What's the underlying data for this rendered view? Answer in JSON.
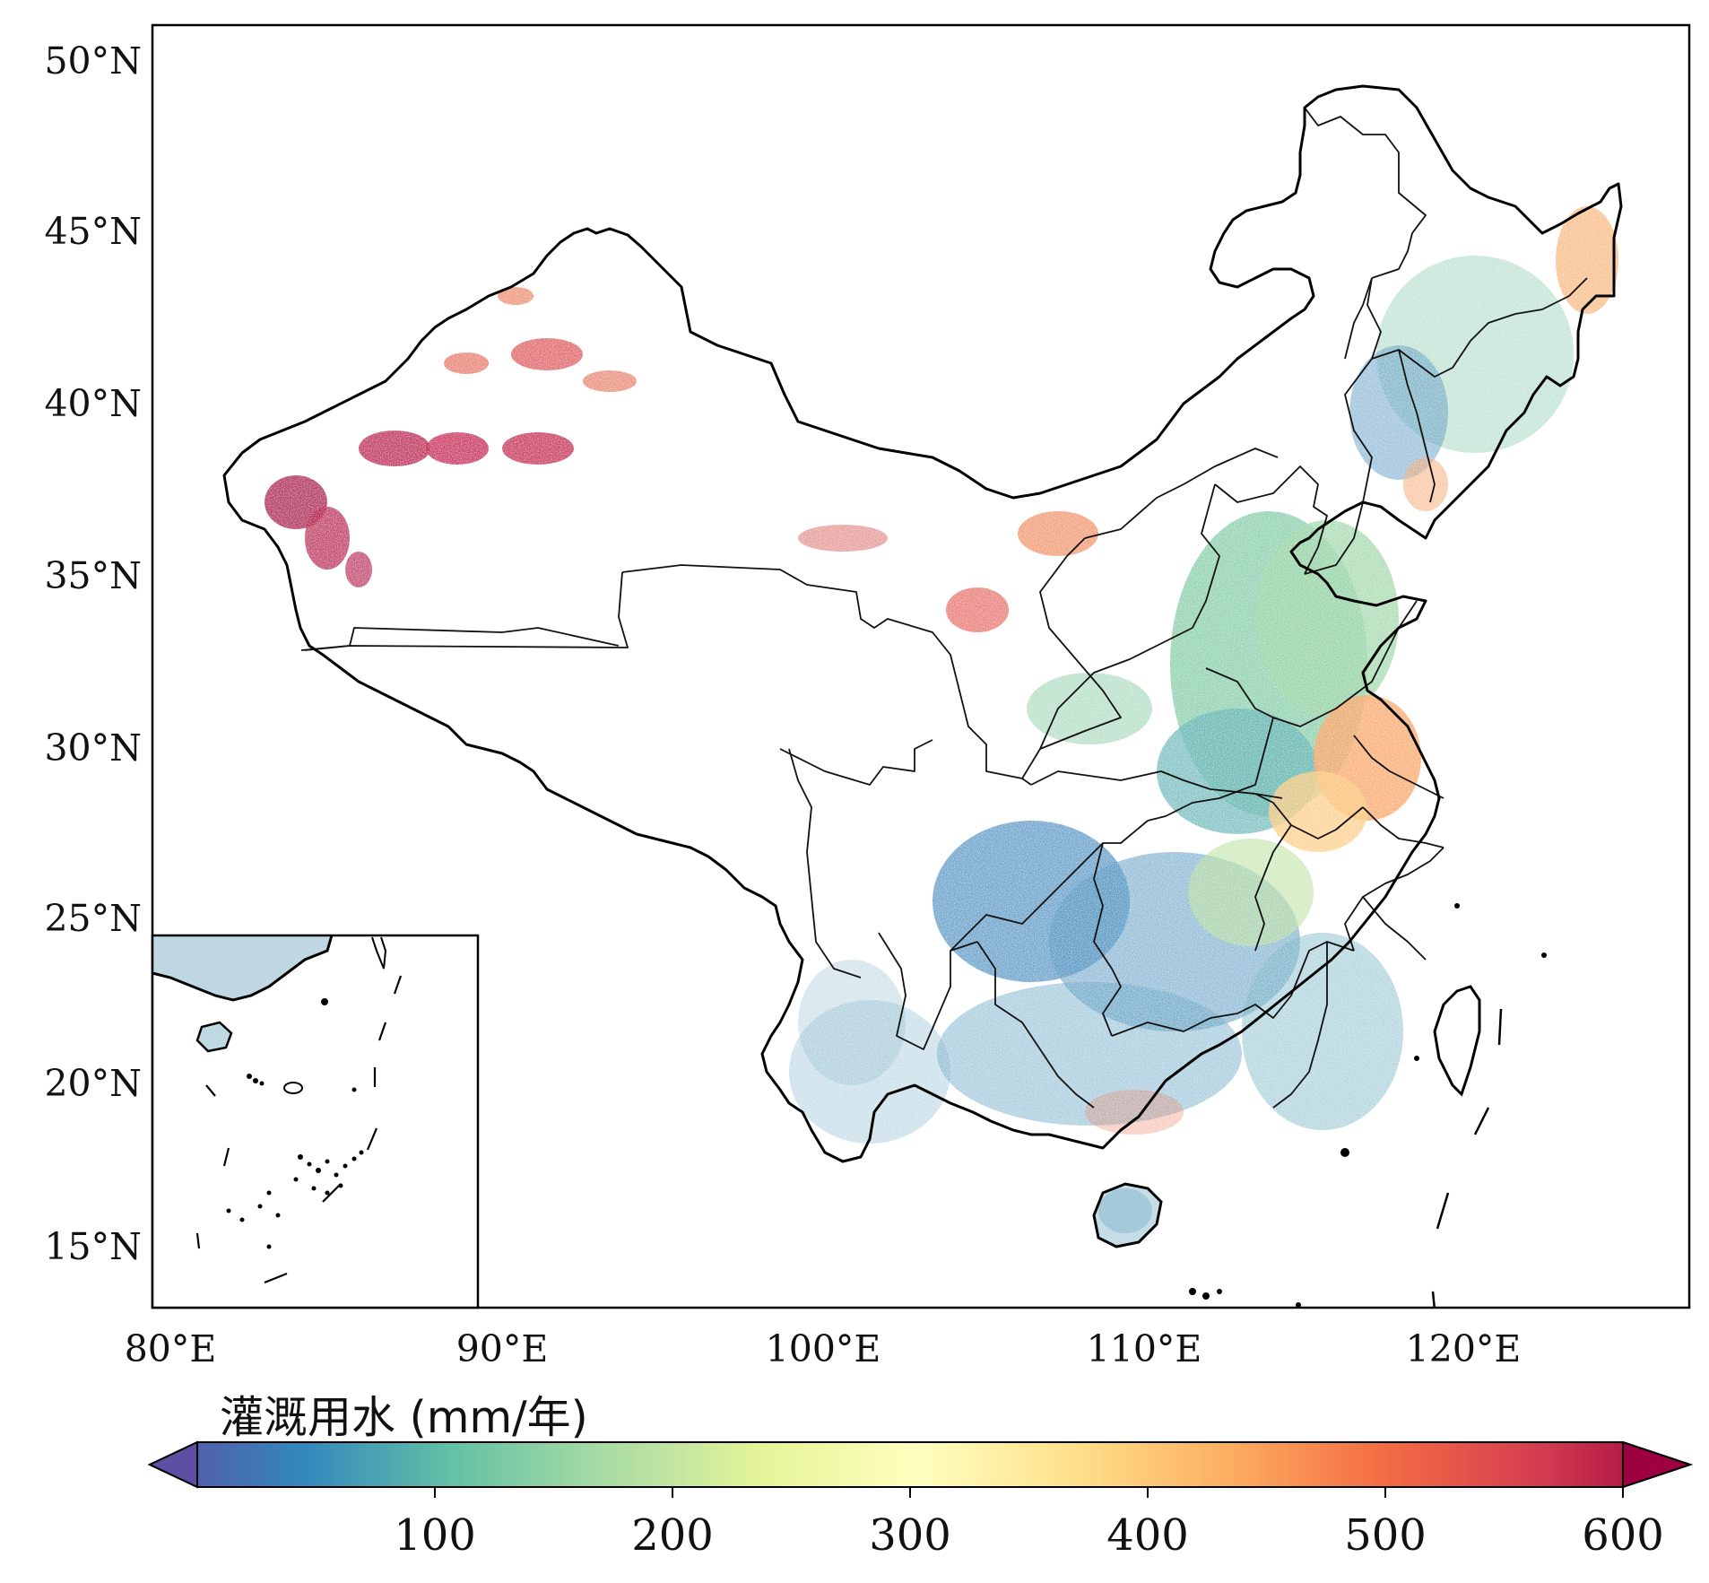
{
  "map": {
    "lat_labels": [
      "50°N",
      "45°N",
      "40°N",
      "35°N",
      "30°N",
      "25°N",
      "20°N",
      "15°N"
    ],
    "lon_labels": [
      "80°E",
      "90°E",
      "100°E",
      "110°E",
      "120°E"
    ]
  },
  "colorbar": {
    "title": "灌溉用水 (mm/年)",
    "ticks": [
      "100",
      "200",
      "300",
      "400",
      "500",
      "600"
    ],
    "min": 0,
    "max": 600,
    "extend": "both",
    "colormap": "Spectral_r",
    "stops": [
      "#5e4fa2",
      "#3288bd",
      "#66c2a5",
      "#abdda4",
      "#e6f598",
      "#ffffbf",
      "#fee08b",
      "#fdae61",
      "#f46d43",
      "#d53e4f",
      "#9e0142"
    ]
  }
}
